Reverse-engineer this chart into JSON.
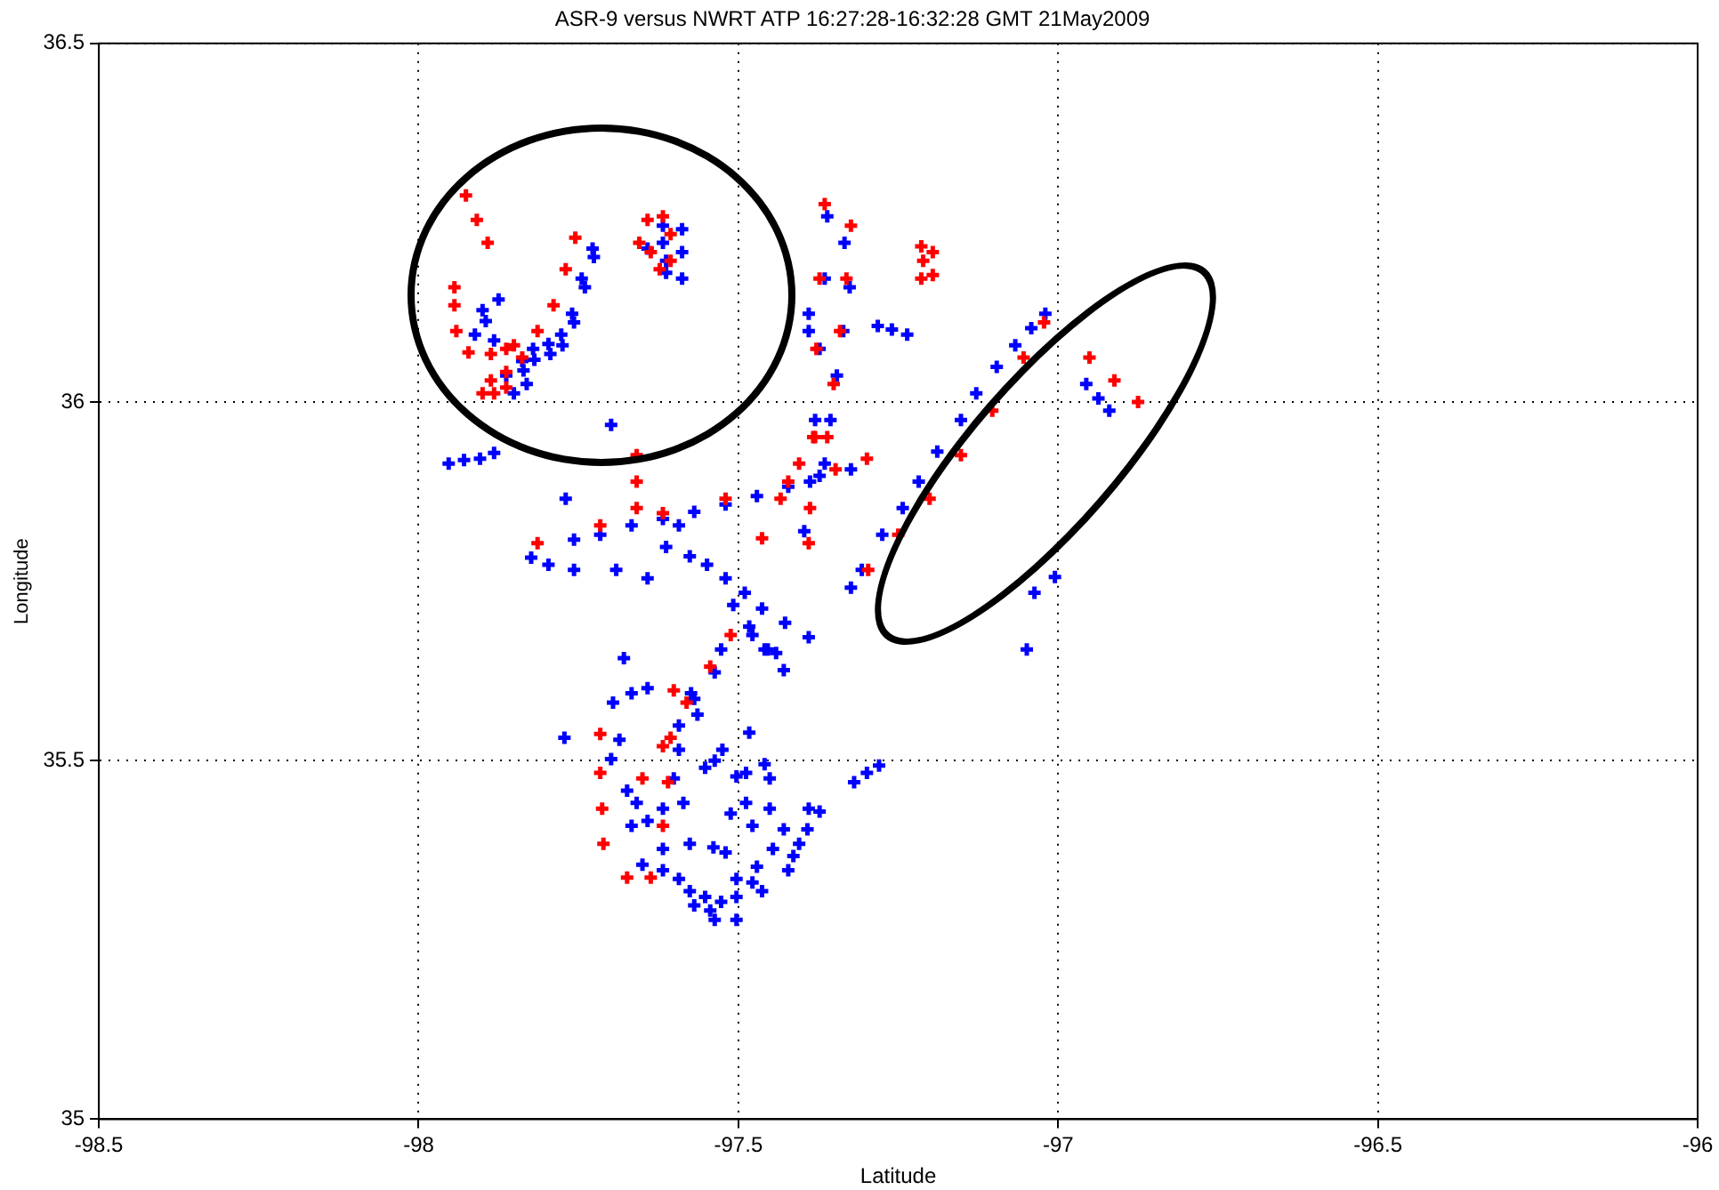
{
  "chart_data": {
    "type": "scatter",
    "title": "ASR-9 versus NWRT ATP 16:27:28-16:32:28 GMT 21May2009",
    "xlabel": "Latitude",
    "ylabel": "Longitude",
    "xlim": [
      -98.5,
      -96
    ],
    "ylim": [
      35,
      36.5
    ],
    "xticks": [
      -98.5,
      -98,
      -97.5,
      -97,
      -96.5,
      -96
    ],
    "yticks": [
      35,
      35.5,
      36,
      36.5
    ],
    "grid": true,
    "marker": "cross",
    "legend": false,
    "series": [
      {
        "color": "#ff0000",
        "x": [
          -97.926,
          -97.909,
          -97.892,
          -97.755,
          -97.77,
          -97.789,
          -97.814,
          -97.851,
          -97.887,
          -97.922,
          -97.941,
          -97.944,
          -97.944,
          -97.863,
          -97.838,
          -97.863,
          -97.887,
          -97.9,
          -97.882,
          -97.863,
          -97.655,
          -97.642,
          -97.618,
          -97.606,
          -97.606,
          -97.623,
          -97.637,
          -97.214,
          -97.196,
          -97.196,
          -97.214,
          -97.211,
          -97.365,
          -97.373,
          -97.378,
          -97.383,
          -97.388,
          -97.39,
          -97.324,
          -97.331,
          -97.341,
          -97.351,
          -97.361,
          -97.463,
          -97.434,
          -97.405,
          -97.38,
          -97.814,
          -97.716,
          -97.618,
          -97.52,
          -97.422,
          -97.348,
          -97.299,
          -97.659,
          -97.659,
          -97.659,
          -97.297,
          -97.25,
          -97.201,
          -97.152,
          -97.103,
          -97.054,
          -97.022,
          -96.951,
          -96.912,
          -96.875,
          -97.65,
          -97.618,
          -97.581,
          -97.544,
          -97.512,
          -97.601,
          -97.606,
          -97.61,
          -97.618,
          -97.716,
          -97.716,
          -97.713,
          -97.711,
          -97.674,
          -97.637
        ],
        "values": [
          36.288,
          36.254,
          36.222,
          36.229,
          36.185,
          36.135,
          36.099,
          36.079,
          36.067,
          36.069,
          36.099,
          36.135,
          36.16,
          36.074,
          36.062,
          36.042,
          36.03,
          36.012,
          36.012,
          36.02,
          36.222,
          36.254,
          36.259,
          36.234,
          36.197,
          36.185,
          36.209,
          36.217,
          36.209,
          36.177,
          36.172,
          36.197,
          36.276,
          36.172,
          36.074,
          35.951,
          35.852,
          35.803,
          36.246,
          36.172,
          36.099,
          36.025,
          35.951,
          35.81,
          35.865,
          35.914,
          35.951,
          35.803,
          35.828,
          35.845,
          35.865,
          35.889,
          35.906,
          35.921,
          35.926,
          35.889,
          35.852,
          35.766,
          35.815,
          35.865,
          35.926,
          35.988,
          36.062,
          36.111,
          36.062,
          36.03,
          36,
          35.475,
          35.52,
          35.581,
          35.631,
          35.675,
          35.598,
          35.532,
          35.47,
          35.409,
          35.537,
          35.483,
          35.433,
          35.384,
          35.337,
          35.337
        ]
      },
      {
        "color": "#0000ff",
        "x": [
          -97.728,
          -97.726,
          -97.745,
          -97.74,
          -97.76,
          -97.757,
          -97.777,
          -97.775,
          -97.797,
          -97.794,
          -97.821,
          -97.819,
          -97.838,
          -97.836,
          -97.831,
          -97.851,
          -97.863,
          -97.875,
          -97.9,
          -97.895,
          -97.912,
          -97.882,
          -97.618,
          -97.618,
          -97.613,
          -97.588,
          -97.588,
          -97.588,
          -97.642,
          -97.613,
          -97.699,
          -97.953,
          -97.929,
          -97.904,
          -97.882,
          -97.77,
          -97.361,
          -97.365,
          -97.373,
          -97.38,
          -97.388,
          -97.397,
          -97.334,
          -97.326,
          -97.336,
          -97.346,
          -97.356,
          -97.365,
          -97.39,
          -97.39,
          -97.282,
          -97.26,
          -97.236,
          -97.757,
          -97.716,
          -97.667,
          -97.618,
          -97.569,
          -97.52,
          -97.471,
          -97.422,
          -97.373,
          -97.324,
          -97.576,
          -97.549,
          -97.52,
          -97.49,
          -97.463,
          -97.427,
          -97.39,
          -97.508,
          -97.483,
          -97.459,
          -97.593,
          -97.613,
          -97.642,
          -97.691,
          -97.324,
          -97.307,
          -97.275,
          -97.243,
          -97.218,
          -97.189,
          -97.152,
          -97.128,
          -97.096,
          -97.067,
          -97.042,
          -97.02,
          -96.956,
          -96.937,
          -96.92,
          -97.037,
          -97.005,
          -97.049,
          -97.319,
          -97.299,
          -97.28,
          -97.772,
          -97.679,
          -97.696,
          -97.667,
          -97.642,
          -97.569,
          -97.527,
          -97.537,
          -97.483,
          -97.686,
          -97.699,
          -97.674,
          -97.659,
          -97.642,
          -97.667,
          -97.593,
          -97.593,
          -97.601,
          -97.586,
          -97.552,
          -97.537,
          -97.525,
          -97.503,
          -97.488,
          -97.459,
          -97.451,
          -97.618,
          -97.618,
          -97.576,
          -97.539,
          -97.52,
          -97.512,
          -97.488,
          -97.478,
          -97.451,
          -97.503,
          -97.471,
          -97.446,
          -97.414,
          -97.405,
          -97.429,
          -97.39,
          -97.373,
          -97.392,
          -97.422,
          -97.65,
          -97.618,
          -97.593,
          -97.576,
          -97.552,
          -97.544,
          -97.527,
          -97.503,
          -97.478,
          -97.463,
          -97.569,
          -97.503,
          -97.537,
          -97.564,
          -97.574,
          -97.429,
          -97.478,
          -97.454,
          -97.441,
          -97.824,
          -97.797,
          -97.757
        ],
        "values": [
          36.214,
          36.202,
          36.172,
          36.16,
          36.123,
          36.111,
          36.094,
          36.079,
          36.081,
          36.067,
          36.074,
          36.059,
          36.057,
          36.044,
          36.025,
          36.012,
          36.037,
          36.143,
          36.128,
          36.113,
          36.094,
          36.086,
          36.246,
          36.222,
          36.197,
          36.241,
          36.209,
          36.172,
          36.214,
          36.18,
          35.968,
          35.914,
          35.919,
          35.921,
          35.929,
          35.865,
          36.259,
          36.172,
          36.074,
          35.975,
          35.889,
          35.82,
          36.222,
          36.16,
          36.099,
          36.037,
          35.975,
          35.914,
          36.099,
          36.123,
          36.106,
          36.101,
          36.094,
          35.808,
          35.815,
          35.828,
          35.837,
          35.847,
          35.857,
          35.869,
          35.882,
          35.897,
          35.906,
          35.785,
          35.773,
          35.754,
          35.734,
          35.712,
          35.692,
          35.672,
          35.717,
          35.687,
          35.655,
          35.828,
          35.798,
          35.754,
          35.766,
          35.741,
          35.766,
          35.815,
          35.852,
          35.889,
          35.931,
          35.975,
          36.012,
          36.049,
          36.079,
          36.103,
          36.123,
          36.025,
          36.005,
          35.988,
          35.734,
          35.756,
          35.655,
          35.47,
          35.483,
          35.493,
          35.532,
          35.643,
          35.581,
          35.594,
          35.601,
          35.586,
          35.655,
          35.623,
          35.539,
          35.529,
          35.502,
          35.458,
          35.441,
          35.416,
          35.409,
          35.549,
          35.515,
          35.475,
          35.441,
          35.49,
          35.5,
          35.515,
          35.478,
          35.483,
          35.495,
          35.475,
          35.433,
          35.377,
          35.384,
          35.379,
          35.372,
          35.426,
          35.441,
          35.409,
          35.433,
          35.335,
          35.352,
          35.377,
          35.367,
          35.384,
          35.404,
          35.433,
          35.429,
          35.404,
          35.347,
          35.355,
          35.347,
          35.335,
          35.318,
          35.31,
          35.291,
          35.303,
          35.31,
          35.33,
          35.318,
          35.298,
          35.278,
          35.278,
          35.564,
          35.594,
          35.626,
          35.675,
          35.655,
          35.65,
          35.783,
          35.773,
          35.766
        ]
      }
    ]
  }
}
